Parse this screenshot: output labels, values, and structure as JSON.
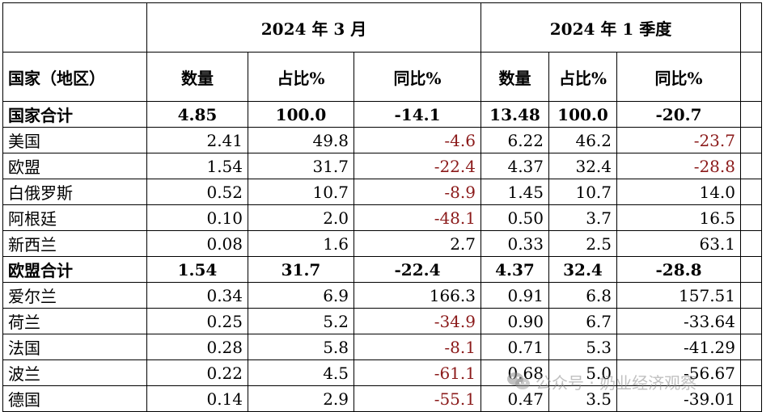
{
  "header": {
    "period1": "2024 年 3 月",
    "period2": "2024 年 1 季度",
    "country_label": "国家（地区）",
    "qty_label": "数量",
    "share_label": "占比%",
    "yoy_label": "同比%"
  },
  "rows": [
    {
      "name": "国家合计",
      "q1": "4.85",
      "s1": "100.0",
      "y1": "-14.1",
      "q2": "13.48",
      "s2": "100.0",
      "y2": "-20.7"
    },
    {
      "name": "美国",
      "q1": "2.41",
      "s1": "49.8",
      "y1": "-4.6",
      "q2": "6.22",
      "s2": "46.2",
      "y2": "-23.7"
    },
    {
      "name": "欧盟",
      "q1": "1.54",
      "s1": "31.7",
      "y1": "-22.4",
      "q2": "4.37",
      "s2": "32.4",
      "y2": "-28.8"
    },
    {
      "name": "白俄罗斯",
      "q1": "0.52",
      "s1": "10.7",
      "y1": "-8.9",
      "q2": "1.45",
      "s2": "10.7",
      "y2": "14.0"
    },
    {
      "name": "阿根廷",
      "q1": "0.10",
      "s1": "2.0",
      "y1": "-48.1",
      "q2": "0.50",
      "s2": "3.7",
      "y2": "16.5"
    },
    {
      "name": "新西兰",
      "q1": "0.08",
      "s1": "1.6",
      "y1": "2.7",
      "q2": "0.33",
      "s2": "2.5",
      "y2": "63.1"
    },
    {
      "name": "欧盟合计",
      "q1": "1.54",
      "s1": "31.7",
      "y1": "-22.4",
      "q2": "4.37",
      "s2": "32.4",
      "y2": "-28.8"
    },
    {
      "name": "爱尔兰",
      "q1": "0.34",
      "s1": "6.9",
      "y1": "166.3",
      "q2": "0.91",
      "s2": "6.8",
      "y2": "157.51"
    },
    {
      "name": "荷兰",
      "q1": "0.25",
      "s1": "5.2",
      "y1": "-34.9",
      "q2": "0.90",
      "s2": "6.7",
      "y2": "-33.64"
    },
    {
      "name": "法国",
      "q1": "0.28",
      "s1": "5.8",
      "y1": "-8.1",
      "q2": "0.71",
      "s2": "5.3",
      "y2": "-41.29"
    },
    {
      "name": "波兰",
      "q1": "0.22",
      "s1": "4.5",
      "y1": "-61.1",
      "q2": "0.68",
      "s2": "5.0",
      "y2": "-56.67"
    },
    {
      "name": "德国",
      "q1": "0.14",
      "s1": "2.9",
      "y1": "-55.1",
      "q2": "0.47",
      "s2": "3.5",
      "y2": "-39.01"
    }
  ],
  "watermark": {
    "text": "公众号 · 奶业经济观察",
    "icon": "wechat-icon"
  },
  "colors": {
    "negative": "#8b1a1a",
    "watermark": "#8c8c8c"
  }
}
